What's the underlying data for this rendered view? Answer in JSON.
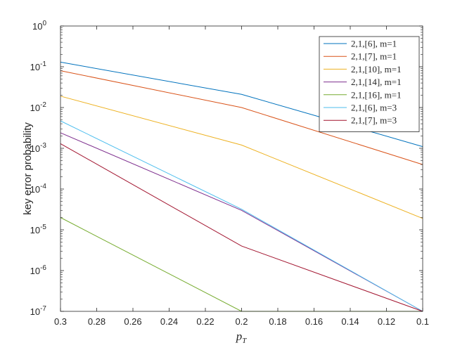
{
  "chart_data": {
    "type": "line",
    "title": "",
    "xlabel_main": "p",
    "xlabel_sub": "T",
    "ylabel": "key error probability",
    "xlim": [
      0.1,
      0.3
    ],
    "x_reversed": true,
    "ylim": [
      1e-07,
      1
    ],
    "yscale": "log",
    "grid": false,
    "legend_position": "top-right",
    "x_ticks": [
      0.3,
      0.28,
      0.26,
      0.24,
      0.22,
      0.2,
      0.18,
      0.16,
      0.14,
      0.12,
      0.1
    ],
    "x_tick_labels": [
      "0.3",
      "0.28",
      "0.26",
      "0.24",
      "0.22",
      "0.2",
      "0.18",
      "0.16",
      "0.14",
      "0.12",
      "0.1"
    ],
    "y_ticks": [
      {
        "value": 1,
        "base": "10",
        "exp": "0"
      },
      {
        "value": 0.1,
        "base": "10",
        "exp": "-1"
      },
      {
        "value": 0.01,
        "base": "10",
        "exp": "-2"
      },
      {
        "value": 0.001,
        "base": "10",
        "exp": "-3"
      },
      {
        "value": 0.0001,
        "base": "10",
        "exp": "-4"
      },
      {
        "value": 1e-05,
        "base": "10",
        "exp": "-5"
      },
      {
        "value": 1e-06,
        "base": "10",
        "exp": "-6"
      },
      {
        "value": 1e-07,
        "base": "10",
        "exp": "-7"
      }
    ],
    "x": [
      0.3,
      0.2,
      0.1
    ],
    "series": [
      {
        "name": "2,1,[6], m=1",
        "color": "#0072BD",
        "values": [
          0.13,
          0.021,
          0.0011
        ]
      },
      {
        "name": "2,1,[7], m=1",
        "color": "#D95319",
        "values": [
          0.08,
          0.01,
          0.0004
        ]
      },
      {
        "name": "2,1,[10], m=1",
        "color": "#EDB120",
        "values": [
          0.019,
          0.0012,
          1.9e-05
        ]
      },
      {
        "name": "2,1,[14], m=1",
        "color": "#7E2F8E",
        "values": [
          0.0024,
          3e-05,
          1e-07
        ]
      },
      {
        "name": "2,1,[16], m=1",
        "color": "#77AC30",
        "values": [
          2e-05,
          1e-07,
          1e-07
        ]
      },
      {
        "name": "2,1,[6], m=3",
        "color": "#4DBEEE",
        "values": [
          0.0047,
          3.2e-05,
          1e-07
        ]
      },
      {
        "name": "2,1,[7], m=3",
        "color": "#A2142F",
        "values": [
          0.0013,
          4e-06,
          1e-07
        ]
      }
    ]
  }
}
